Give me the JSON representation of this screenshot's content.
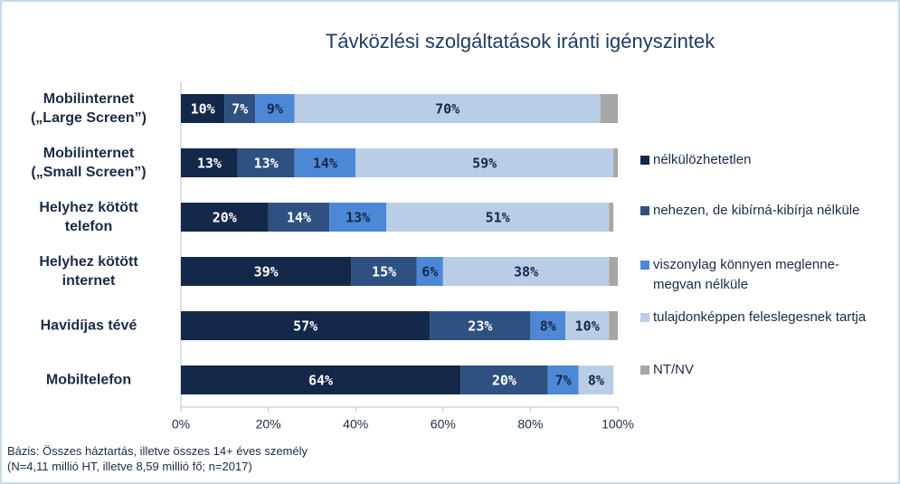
{
  "chart_data": {
    "type": "stacked_bar_horizontal",
    "title": "Távközlési szolgáltatások iránti igényszintek",
    "categories": [
      "Mobilinternet\n(„Large Screen”)",
      "Mobilinternet\n(„Small Screen”)",
      "Helyhez kötött\ntelefon",
      "Helyhez kötött\ninternet",
      "Havidíjas tévé",
      "Mobiltelefon"
    ],
    "series": [
      {
        "name": "nélkülözhetetlen",
        "color": "#14284a",
        "values": [
          10,
          13,
          20,
          39,
          57,
          64
        ],
        "value_labels": [
          "10%",
          "13%",
          "20%",
          "39%",
          "57%",
          "64%"
        ]
      },
      {
        "name": "nehezen, de kibírná-kibírja nélküle",
        "color": "#2e5181",
        "values": [
          7,
          13,
          14,
          15,
          23,
          20
        ],
        "value_labels": [
          "7%",
          "13%",
          "14%",
          "15%",
          "23%",
          "20%"
        ]
      },
      {
        "name": "viszonylag könnyen meglenne-megvan nélküle",
        "color": "#4d88d6",
        "values": [
          9,
          14,
          13,
          6,
          8,
          7
        ],
        "value_labels": [
          "9%",
          "14%",
          "13%",
          "6%",
          "8%",
          "7%"
        ]
      },
      {
        "name": "tulajdonképpen feleslegesnek tartja",
        "color": "#b9cde6",
        "values": [
          70,
          59,
          51,
          38,
          10,
          8
        ],
        "value_labels": [
          "70%",
          "59%",
          "51%",
          "38%",
          "10%",
          "8%"
        ]
      },
      {
        "name": "NT/NV",
        "color": "#a6a6a6",
        "values": [
          4,
          1,
          1,
          2,
          2,
          0
        ]
      }
    ],
    "xlim": [
      0,
      100
    ],
    "xticks": [
      {
        "value": 0,
        "label": "0%"
      },
      {
        "value": 20,
        "label": "20%"
      },
      {
        "value": 40,
        "label": "40%"
      },
      {
        "value": 60,
        "label": "60%"
      },
      {
        "value": 80,
        "label": "80%"
      },
      {
        "value": 100,
        "label": "100%"
      }
    ],
    "legend": "right",
    "note": "Bázis: Összes háztartás, illetve összes 14+ éves személy\n(N=4,11 millió HT, illetve 8,59 millió fő; n=2017)"
  }
}
